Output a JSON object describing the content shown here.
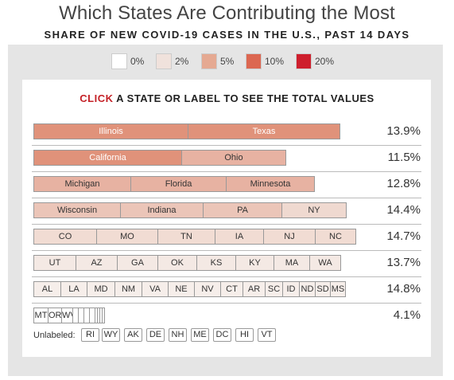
{
  "header": {
    "title": "Which States Are Contributing the Most",
    "subtitle": "SHARE OF NEW COVID-19 CASES IN THE U.S., PAST 14 DAYS"
  },
  "legend": [
    {
      "label": "0%",
      "color": "#ffffff"
    },
    {
      "label": "2%",
      "color": "#f0e2dc"
    },
    {
      "label": "5%",
      "color": "#e5a992"
    },
    {
      "label": "10%",
      "color": "#dc6751"
    },
    {
      "label": "20%",
      "color": "#ce1f2d"
    }
  ],
  "instruction": {
    "highlight": "CLICK",
    "rest": " A STATE OR LABEL TO SEE THE TOTAL VALUES"
  },
  "rows": [
    {
      "total": "13.9%",
      "states": [
        {
          "label": "Illinois",
          "color": "#e0927a",
          "dark": true
        },
        {
          "label": "Texas",
          "color": "#e0927a",
          "dark": true
        }
      ]
    },
    {
      "total": "11.5%",
      "states": [
        {
          "label": "California",
          "color": "#e0927a",
          "dark": true
        },
        {
          "label": "Ohio",
          "color": "#e7b2a2",
          "dark": false
        }
      ]
    },
    {
      "total": "12.8%",
      "states": [
        {
          "label": "Michigan",
          "color": "#e7b2a2",
          "dark": false
        },
        {
          "label": "Florida",
          "color": "#e7b2a2",
          "dark": false
        },
        {
          "label": "Minnesota",
          "color": "#e7b2a2",
          "dark": false
        }
      ]
    },
    {
      "total": "14.4%",
      "states": [
        {
          "label": "Wisconsin",
          "color": "#ebc5b8",
          "dark": false
        },
        {
          "label": "Indiana",
          "color": "#ebc5b8",
          "dark": false
        },
        {
          "label": "PA",
          "color": "#ebc5b8",
          "dark": false
        },
        {
          "label": "NY",
          "color": "#efd9d0",
          "dark": false
        }
      ]
    },
    {
      "total": "14.7%",
      "states": [
        {
          "label": "CO",
          "color": "#f1dcd3",
          "dark": false
        },
        {
          "label": "MO",
          "color": "#f1dcd3",
          "dark": false
        },
        {
          "label": "TN",
          "color": "#f1dcd3",
          "dark": false
        },
        {
          "label": "IA",
          "color": "#f1dcd3",
          "dark": false
        },
        {
          "label": "NJ",
          "color": "#f1dcd3",
          "dark": false
        },
        {
          "label": "NC",
          "color": "#f1dcd3",
          "dark": false
        }
      ]
    },
    {
      "total": "13.7%",
      "states": [
        {
          "label": "UT",
          "color": "#f4e9e4",
          "dark": false
        },
        {
          "label": "AZ",
          "color": "#f4e9e4",
          "dark": false
        },
        {
          "label": "GA",
          "color": "#f4e9e4",
          "dark": false
        },
        {
          "label": "OK",
          "color": "#f4e9e4",
          "dark": false
        },
        {
          "label": "KS",
          "color": "#f4e9e4",
          "dark": false
        },
        {
          "label": "KY",
          "color": "#f4e9e4",
          "dark": false
        },
        {
          "label": "MA",
          "color": "#f4e9e4",
          "dark": false
        },
        {
          "label": "WA",
          "color": "#f4e9e4",
          "dark": false
        }
      ]
    },
    {
      "total": "14.8%",
      "states": [
        {
          "label": "AL",
          "color": "#f6eeea",
          "dark": false
        },
        {
          "label": "LA",
          "color": "#f6eeea",
          "dark": false
        },
        {
          "label": "MD",
          "color": "#f6eeea",
          "dark": false
        },
        {
          "label": "NM",
          "color": "#f6eeea",
          "dark": false
        },
        {
          "label": "VA",
          "color": "#f6eeea",
          "dark": false
        },
        {
          "label": "NE",
          "color": "#f6eeea",
          "dark": false
        },
        {
          "label": "NV",
          "color": "#f6eeea",
          "dark": false
        },
        {
          "label": "CT",
          "color": "#f6eeea",
          "dark": false
        },
        {
          "label": "AR",
          "color": "#f6eeea",
          "dark": false
        },
        {
          "label": "SC",
          "color": "#f6eeea",
          "dark": false
        },
        {
          "label": "ID",
          "color": "#f6eeea",
          "dark": false
        },
        {
          "label": "ND",
          "color": "#f6eeea",
          "dark": false
        },
        {
          "label": "SD",
          "color": "#f6eeea",
          "dark": false
        },
        {
          "label": "MS",
          "color": "#f6eeea",
          "dark": false
        }
      ]
    },
    {
      "total": "4.1%",
      "states": [
        {
          "label": "MT",
          "color": "#ffffff",
          "dark": false
        },
        {
          "label": "OR",
          "color": "#ffffff",
          "dark": false
        },
        {
          "label": "WV",
          "color": "#ffffff",
          "dark": false
        }
      ]
    }
  ],
  "unlabeled": {
    "label": "Unlabeled:",
    "states": [
      "RI",
      "WY",
      "AK",
      "DE",
      "NH",
      "ME",
      "DC",
      "HI",
      "VT"
    ]
  }
}
